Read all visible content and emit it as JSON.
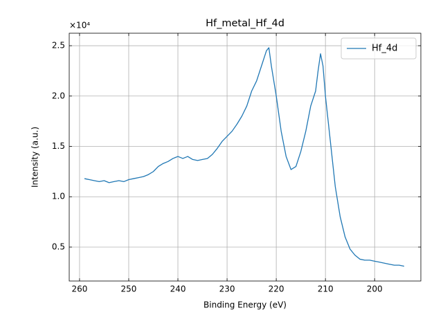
{
  "chart_data": {
    "type": "line",
    "title": "Hf_metal_Hf_4d",
    "x_label": "Binding Energy (eV)",
    "y_label": "Intensity (a.u.)",
    "y_offset": "×10⁴",
    "x": [
      259,
      258,
      257,
      256,
      255,
      254,
      253,
      252,
      251,
      250,
      249,
      248,
      247,
      246,
      245,
      244,
      243,
      242,
      241,
      240,
      239,
      238,
      237,
      236,
      235,
      234,
      233,
      232,
      231,
      230,
      229,
      228,
      227,
      226,
      225,
      224,
      223,
      222,
      221.5,
      221,
      220,
      219,
      218,
      217,
      216,
      215,
      214,
      213,
      212,
      211.5,
      211,
      210.5,
      210,
      209,
      208,
      207,
      206,
      205,
      204,
      203,
      202,
      201,
      200,
      199,
      198,
      197,
      196,
      195,
      194
    ],
    "series": [
      {
        "name": "Hf_4d",
        "color": "#1f77b4",
        "values": [
          1.18,
          1.17,
          1.16,
          1.15,
          1.16,
          1.14,
          1.15,
          1.16,
          1.15,
          1.17,
          1.18,
          1.19,
          1.2,
          1.22,
          1.25,
          1.3,
          1.33,
          1.35,
          1.38,
          1.4,
          1.38,
          1.4,
          1.37,
          1.36,
          1.37,
          1.38,
          1.42,
          1.48,
          1.55,
          1.6,
          1.65,
          1.72,
          1.8,
          1.9,
          2.05,
          2.15,
          2.3,
          2.45,
          2.48,
          2.3,
          2.0,
          1.65,
          1.4,
          1.27,
          1.3,
          1.45,
          1.65,
          1.9,
          2.05,
          2.25,
          2.42,
          2.3,
          2.0,
          1.55,
          1.1,
          0.8,
          0.6,
          0.48,
          0.42,
          0.38,
          0.37,
          0.37,
          0.36,
          0.35,
          0.34,
          0.33,
          0.32,
          0.32,
          0.31
        ]
      }
    ],
    "xlim": [
      262.1,
      190.6
    ],
    "xticks": [
      260,
      250,
      240,
      230,
      220,
      210,
      200
    ],
    "ylim": [
      0.163,
      2.624
    ],
    "yticks": [
      0.5,
      {
        "value": 1.0,
        "label": "1.0"
      },
      1.5,
      {
        "value": 2.0,
        "label": "2.0"
      },
      2.5
    ],
    "grid": true,
    "legend": "upper right"
  }
}
